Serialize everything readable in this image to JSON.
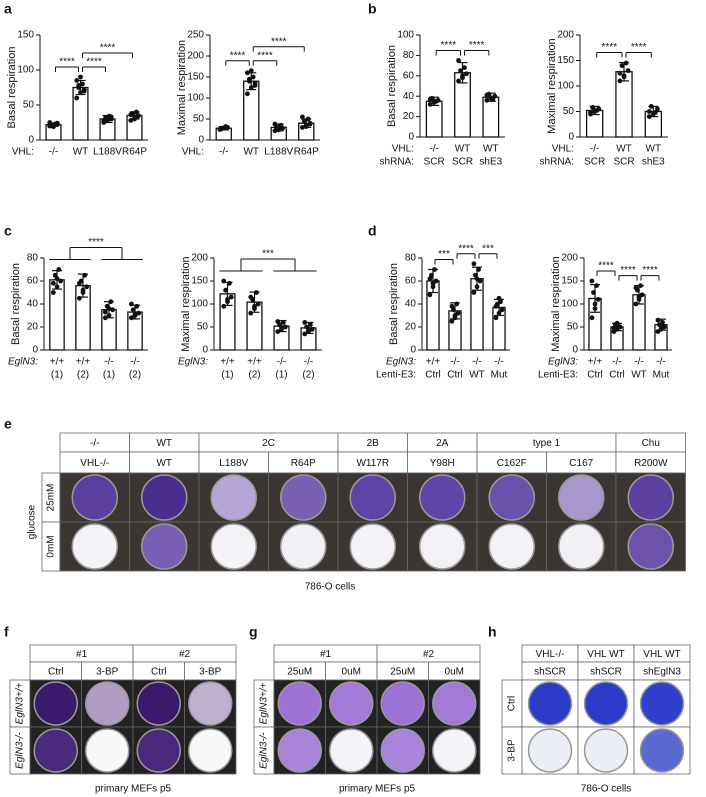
{
  "chart_data": [
    {
      "type": "bar",
      "panel": "a",
      "ylabel": "Basal respiration",
      "xrows": [
        {
          "label": "VHL:",
          "values": [
            "-/-",
            "WT",
            "L188V",
            "R64P"
          ]
        }
      ],
      "ylim": [
        0,
        150
      ],
      "yticks": [
        0,
        50,
        100,
        150
      ],
      "values": [
        22,
        75,
        30,
        35
      ],
      "errors": [
        2,
        10,
        5,
        5
      ],
      "points": [
        [
          20,
          22,
          24,
          21,
          23,
          25,
          19,
          22
        ],
        [
          60,
          68,
          72,
          78,
          80,
          85,
          90,
          70,
          75
        ],
        [
          25,
          28,
          30,
          32,
          34,
          27,
          29,
          33
        ],
        [
          28,
          32,
          35,
          38,
          40,
          36,
          30,
          34
        ]
      ],
      "brackets": [
        {
          "left": [
            0
          ],
          "right": [
            1
          ],
          "label": "****"
        },
        {
          "left": [
            1
          ],
          "right": [
            2
          ],
          "label": "****"
        },
        {
          "left": [
            1
          ],
          "right": [
            3
          ],
          "label": "****"
        }
      ]
    },
    {
      "type": "bar",
      "ylabel": "Maximal respiration",
      "xrows": [
        {
          "label": "VHL:",
          "values": [
            "-/-",
            "WT",
            "L188V",
            "R64P"
          ]
        }
      ],
      "ylim": [
        0,
        250
      ],
      "yticks": [
        0,
        50,
        100,
        150,
        200,
        250
      ],
      "values": [
        28,
        140,
        30,
        40
      ],
      "errors": [
        4,
        20,
        8,
        10
      ],
      "points": [
        [
          25,
          28,
          30,
          27,
          32,
          26,
          29
        ],
        [
          110,
          125,
          135,
          145,
          150,
          160,
          165,
          130,
          140
        ],
        [
          22,
          25,
          28,
          30,
          35,
          38,
          24
        ],
        [
          30,
          35,
          40,
          45,
          50,
          55,
          32,
          38
        ]
      ],
      "brackets": [
        {
          "left": [
            0
          ],
          "right": [
            1
          ],
          "label": "****"
        },
        {
          "left": [
            1
          ],
          "right": [
            2
          ],
          "label": "****"
        },
        {
          "left": [
            1
          ],
          "right": [
            3
          ],
          "label": "****"
        }
      ]
    },
    {
      "type": "bar",
      "panel": "b",
      "ylabel": "Basal respiration",
      "xrows": [
        {
          "label": "VHL:",
          "values": [
            "-/-",
            "WT",
            "WT"
          ]
        },
        {
          "label": "shRNA:",
          "values": [
            "SCR",
            "SCR",
            "shE3"
          ]
        }
      ],
      "ylim": [
        0,
        100
      ],
      "yticks": [
        0,
        20,
        40,
        60,
        80,
        100
      ],
      "values": [
        35,
        63,
        39
      ],
      "errors": [
        4,
        10,
        4
      ],
      "points": [
        [
          32,
          34,
          36,
          38,
          35,
          37
        ],
        [
          55,
          58,
          62,
          65,
          68,
          75,
          60
        ],
        [
          36,
          38,
          40,
          42,
          37,
          41
        ]
      ],
      "brackets": [
        {
          "left": [
            0
          ],
          "right": [
            1
          ],
          "label": "****"
        },
        {
          "left": [
            1
          ],
          "right": [
            2
          ],
          "label": "****"
        }
      ]
    },
    {
      "type": "bar",
      "ylabel": "Maximal respiration",
      "xrows": [
        {
          "label": "VHL:",
          "values": [
            "-/-",
            "WT",
            "WT"
          ]
        },
        {
          "label": "shRNA:",
          "values": [
            "SCR",
            "SCR",
            "shE3"
          ]
        }
      ],
      "ylim": [
        0,
        200
      ],
      "yticks": [
        0,
        50,
        100,
        150,
        200
      ],
      "values": [
        52,
        128,
        50
      ],
      "errors": [
        8,
        18,
        10
      ],
      "points": [
        [
          45,
          50,
          55,
          58,
          52,
          48
        ],
        [
          110,
          120,
          130,
          140,
          145,
          125,
          118
        ],
        [
          40,
          45,
          55,
          60,
          48,
          50
        ]
      ],
      "brackets": [
        {
          "left": [
            0
          ],
          "right": [
            1
          ],
          "label": "****"
        },
        {
          "left": [
            1
          ],
          "right": [
            2
          ],
          "label": "****"
        }
      ]
    },
    {
      "type": "bar",
      "panel": "c",
      "ylabel": "Basal respiration",
      "xrows": [
        {
          "label": "EglN3:",
          "values": [
            "+/+",
            "+/+",
            "-/-",
            "-/-"
          ]
        },
        {
          "values": [
            "(1)",
            "(2)",
            "(1)",
            "(2)"
          ]
        }
      ],
      "ylim": [
        0,
        80
      ],
      "yticks": [
        0,
        20,
        40,
        60,
        80
      ],
      "values": [
        61,
        56,
        35,
        33
      ],
      "errors": [
        8,
        10,
        7,
        6
      ],
      "points": [
        [
          50,
          55,
          60,
          65,
          70,
          58,
          62
        ],
        [
          45,
          50,
          55,
          60,
          65,
          58,
          52
        ],
        [
          28,
          30,
          35,
          38,
          42,
          33,
          36
        ],
        [
          28,
          30,
          32,
          35,
          38,
          40,
          31
        ]
      ],
      "brackets": [
        {
          "left": [
            0,
            1
          ],
          "right": [
            2,
            3
          ],
          "label": "****"
        }
      ]
    },
    {
      "type": "bar",
      "ylabel": "Maximal respiration",
      "xrows": [
        {
          "label": "EglN3:",
          "values": [
            "+/+",
            "+/+",
            "-/-",
            "-/-"
          ]
        },
        {
          "values": [
            "(1)",
            "(2)",
            "(1)",
            "(2)"
          ]
        }
      ],
      "ylim": [
        0,
        200
      ],
      "yticks": [
        0,
        50,
        100,
        150,
        200
      ],
      "values": [
        122,
        104,
        52,
        48
      ],
      "errors": [
        25,
        22,
        12,
        12
      ],
      "points": [
        [
          95,
          105,
          115,
          130,
          145,
          150,
          110
        ],
        [
          80,
          90,
          100,
          110,
          125,
          115,
          95
        ],
        [
          40,
          45,
          50,
          55,
          60,
          62,
          48
        ],
        [
          35,
          40,
          45,
          50,
          55,
          60,
          42
        ]
      ],
      "brackets": [
        {
          "left": [
            0,
            1
          ],
          "right": [
            2,
            3
          ],
          "label": "***"
        }
      ]
    },
    {
      "type": "bar",
      "panel": "d",
      "ylabel": "Basal respiration",
      "xrows": [
        {
          "label": "EglN3:",
          "values": [
            "+/+",
            "-/-",
            "-/-",
            "-/-"
          ]
        },
        {
          "label": "Lenti-E3:",
          "values": [
            "Ctrl",
            "Ctrl",
            "WT",
            "Mut"
          ]
        }
      ],
      "ylim": [
        0,
        80
      ],
      "yticks": [
        0,
        20,
        40,
        60,
        80
      ],
      "values": [
        60,
        34,
        62,
        37
      ],
      "errors": [
        10,
        7,
        10,
        7
      ],
      "points": [
        [
          48,
          55,
          60,
          65,
          70,
          62,
          58
        ],
        [
          25,
          28,
          32,
          35,
          40,
          38,
          30
        ],
        [
          50,
          55,
          60,
          65,
          70,
          75,
          62
        ],
        [
          28,
          32,
          35,
          40,
          42,
          38,
          45
        ]
      ],
      "brackets": [
        {
          "left": [
            0
          ],
          "right": [
            1
          ],
          "label": "***"
        },
        {
          "left": [
            1
          ],
          "right": [
            2
          ],
          "label": "****"
        },
        {
          "left": [
            2
          ],
          "right": [
            3
          ],
          "label": "***"
        }
      ]
    },
    {
      "type": "bar",
      "ylabel": "Maximal respiration",
      "xrows": [
        {
          "label": "EglN3:",
          "values": [
            "+/+",
            "-/-",
            "-/-",
            "-/-"
          ]
        },
        {
          "label": "Lenti-E3:",
          "values": [
            "Ctrl",
            "Ctrl",
            "WT",
            "Mut"
          ]
        }
      ],
      "ylim": [
        0,
        200
      ],
      "yticks": [
        0,
        50,
        100,
        150,
        200
      ],
      "values": [
        112,
        50,
        120,
        55
      ],
      "errors": [
        30,
        8,
        20,
        12
      ],
      "points": [
        [
          70,
          90,
          110,
          125,
          140,
          150,
          100
        ],
        [
          40,
          45,
          50,
          55,
          52,
          48,
          58
        ],
        [
          100,
          110,
          120,
          130,
          140,
          135,
          115
        ],
        [
          40,
          45,
          50,
          55,
          60,
          65,
          52
        ]
      ],
      "brackets": [
        {
          "left": [
            0
          ],
          "right": [
            1
          ],
          "label": "****"
        },
        {
          "left": [
            1
          ],
          "right": [
            2
          ],
          "label": "****"
        },
        {
          "left": [
            2
          ],
          "right": [
            3
          ],
          "label": "****"
        }
      ]
    }
  ],
  "plates": [
    {
      "panel": "e",
      "header": [
        [
          {
            "label": "-/-",
            "span": 1
          },
          {
            "label": "WT",
            "span": 1
          },
          {
            "label": "2C",
            "span": 2
          },
          {
            "label": "2B",
            "span": 1
          },
          {
            "label": "2A",
            "span": 1
          },
          {
            "label": "type 1",
            "span": 2
          },
          {
            "label": "Chu",
            "span": 1
          }
        ],
        [
          {
            "label": "VHL-/-",
            "span": 1
          },
          {
            "label": "WT",
            "span": 1
          },
          {
            "label": "L188V",
            "span": 1
          },
          {
            "label": "R64P",
            "span": 1
          },
          {
            "label": "W117R",
            "span": 1
          },
          {
            "label": "Y98H",
            "span": 1
          },
          {
            "label": "C162F",
            "span": 1
          },
          {
            "label": "C167",
            "span": 1
          },
          {
            "label": "R200W",
            "span": 1
          }
        ]
      ],
      "side_title": "glucose",
      "rows": [
        "25mM",
        "0mM"
      ],
      "caption": "786-O cells"
    },
    {
      "panel": "f",
      "header": [
        [
          {
            "label": "#1",
            "span": 2
          },
          {
            "label": "#2",
            "span": 2
          }
        ],
        [
          {
            "label": "Ctrl",
            "span": 1
          },
          {
            "label": "3-BP",
            "span": 1
          },
          {
            "label": "Ctrl",
            "span": 1
          },
          {
            "label": "3-BP",
            "span": 1
          }
        ]
      ],
      "rows": [
        "EglN3+/+",
        "EglN3-/-"
      ],
      "caption": "primary MEFs p5"
    },
    {
      "panel": "g",
      "header": [
        [
          {
            "label": "#1",
            "span": 2
          },
          {
            "label": "#2",
            "span": 2
          }
        ],
        [
          {
            "label": "25uM",
            "span": 1
          },
          {
            "label": "0uM",
            "span": 1
          },
          {
            "label": "25uM",
            "span": 1
          },
          {
            "label": "0uM",
            "span": 1
          }
        ]
      ],
      "rows": [
        "EglN3+/+",
        "EglN3-/-"
      ],
      "caption": "primary MEFs p5"
    },
    {
      "panel": "h",
      "header": [
        [
          {
            "label": "VHL-/-",
            "span": 1
          },
          {
            "label": "VHL WT",
            "span": 1
          },
          {
            "label": "VHL WT",
            "span": 1
          }
        ],
        [
          {
            "label": "shSCR",
            "span": 1
          },
          {
            "label": "shSCR",
            "span": 1
          },
          {
            "label": "shEglN3",
            "span": 1
          }
        ]
      ],
      "rows": [
        "Ctrl",
        "3-BP"
      ],
      "caption": "786-O cells"
    }
  ]
}
